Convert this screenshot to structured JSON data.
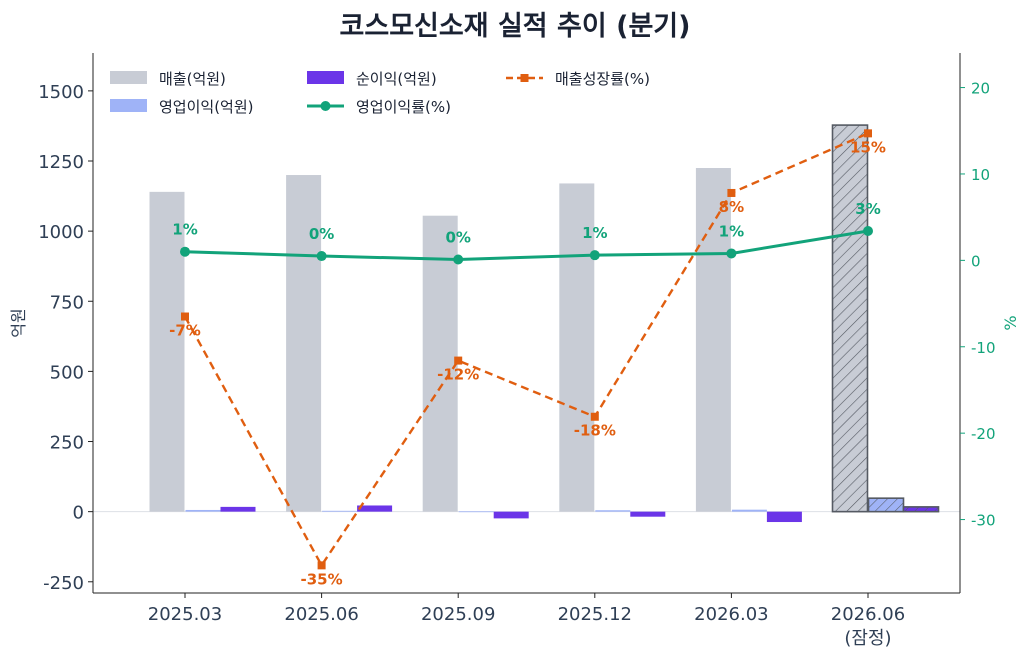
{
  "chart_data": {
    "type": "bar",
    "title": "코스모신소재 실적 추이 (분기)",
    "categories": [
      "2025.03",
      "2025.06",
      "2025.09",
      "2025.12",
      "2026.03",
      "2026.06"
    ],
    "category_sublabels": [
      "",
      "",
      "",
      "",
      "",
      "(잠정)"
    ],
    "estimated_category_index": 5,
    "ylabel": "억원",
    "y2label": "%",
    "ylim": [
      -290,
      1635
    ],
    "y2lim": [
      -38.5,
      24
    ],
    "yticks": [
      -250,
      0,
      250,
      500,
      750,
      1000,
      1250,
      1500
    ],
    "y2ticks": [
      -30,
      -20,
      -10,
      0,
      10,
      20
    ],
    "grid": false,
    "legend_position": "top-left",
    "series": [
      {
        "name": "매출(억원)",
        "kind": "bar",
        "axis": "left",
        "color": "#c8ccd5",
        "values": [
          1140,
          1200,
          1055,
          1170,
          1225,
          1378
        ]
      },
      {
        "name": "영업이익(억원)",
        "kind": "bar",
        "axis": "left",
        "color": "#9fb3f7",
        "values": [
          6,
          3,
          1,
          5,
          7,
          48
        ]
      },
      {
        "name": "순이익(억원)",
        "kind": "bar",
        "axis": "left",
        "color": "#6b35e8",
        "values": [
          17,
          22,
          -24,
          -18,
          -37,
          17
        ]
      },
      {
        "name": "영업이익률(%)",
        "kind": "line",
        "axis": "right",
        "color": "#12a37a",
        "values": [
          1.0,
          0.5,
          0.1,
          0.6,
          0.8,
          3.4
        ],
        "labels": [
          "1%",
          "0%",
          "0%",
          "1%",
          "1%",
          "3%"
        ]
      },
      {
        "name": "매출성장률(%)",
        "kind": "line",
        "axis": "right",
        "color": "#e05e10",
        "style": "dashed",
        "values": [
          -6.5,
          -35.3,
          -11.6,
          -18.1,
          7.8,
          14.7
        ],
        "labels": [
          "-7%",
          "-35%",
          "-12%",
          "-18%",
          "8%",
          "15%"
        ]
      }
    ]
  }
}
